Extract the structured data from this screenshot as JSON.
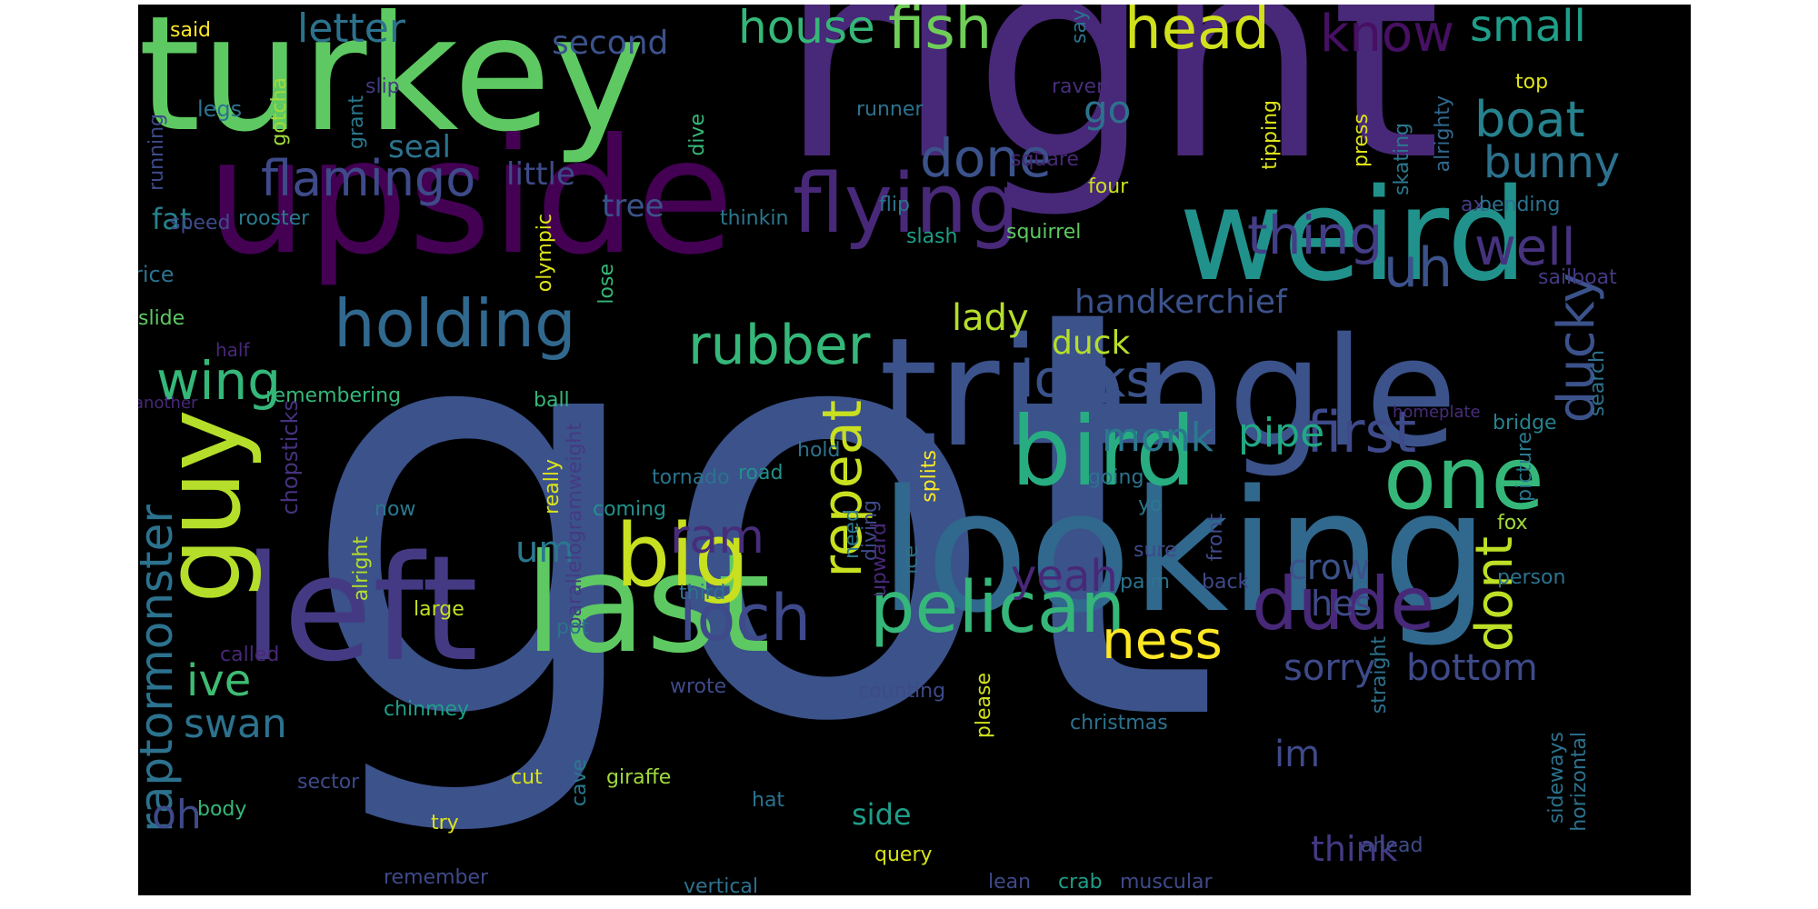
{
  "colors": {
    "canvas_bg": "#000000",
    "page_bg": "#ffffff"
  },
  "words": [
    {
      "text": "got",
      "color": "#3b528b"
    },
    {
      "text": "right",
      "color": "#482878"
    },
    {
      "text": "turkey",
      "color": "#5ec962"
    },
    {
      "text": "upside",
      "color": "#440154"
    },
    {
      "text": "looking",
      "color": "#31688e"
    },
    {
      "text": "triangle",
      "color": "#3b528b"
    },
    {
      "text": "weird",
      "color": "#21918c"
    },
    {
      "text": "last",
      "color": "#5ec962"
    },
    {
      "text": "left",
      "color": "#443a83"
    },
    {
      "text": "flying",
      "color": "#482878"
    },
    {
      "text": "guy",
      "color": "#b5de2b"
    },
    {
      "text": "bird",
      "color": "#27ad81"
    },
    {
      "text": "one",
      "color": "#35b779"
    },
    {
      "text": "big",
      "color": "#c8e020"
    },
    {
      "text": "pelican",
      "color": "#35b779"
    },
    {
      "text": "dude",
      "color": "#482878"
    },
    {
      "text": "holding",
      "color": "#31688e"
    },
    {
      "text": "flamingo",
      "color": "#3e4a89"
    },
    {
      "text": "rubber",
      "color": "#35b779"
    },
    {
      "text": "loch",
      "color": "#3e4a89"
    },
    {
      "text": "head",
      "color": "#d0e11c"
    },
    {
      "text": "fish",
      "color": "#6ece58"
    },
    {
      "text": "house",
      "color": "#35b779"
    },
    {
      "text": "know",
      "color": "#471063"
    },
    {
      "text": "small",
      "color": "#1f9e89"
    },
    {
      "text": "boat",
      "color": "#26828e"
    },
    {
      "text": "bunny",
      "color": "#2c728e"
    },
    {
      "text": "done",
      "color": "#3b528b"
    },
    {
      "text": "thing",
      "color": "#433e85"
    },
    {
      "text": "uh",
      "color": "#3b528b"
    },
    {
      "text": "well",
      "color": "#46327e"
    },
    {
      "text": "first",
      "color": "#3e4a89"
    },
    {
      "text": "ducky",
      "color": "#3b528b"
    },
    {
      "text": "repeat",
      "color": "#c8e020"
    },
    {
      "text": "ram",
      "color": "#472d7b"
    },
    {
      "text": "ness",
      "color": "#fde725"
    },
    {
      "text": "dont",
      "color": "#bddf26"
    },
    {
      "text": "looks",
      "color": "#3b528b"
    },
    {
      "text": "monk",
      "color": "#2a788e"
    },
    {
      "text": "pipe",
      "color": "#22a884"
    },
    {
      "text": "wing",
      "color": "#35b779"
    },
    {
      "text": "raptormonster",
      "color": "#2c728e"
    },
    {
      "text": "ive",
      "color": "#3fbc73"
    },
    {
      "text": "swan",
      "color": "#2c728e"
    },
    {
      "text": "oh",
      "color": "#3e4a89"
    },
    {
      "text": "um",
      "color": "#2a788e"
    },
    {
      "text": "letter",
      "color": "#2c728e"
    },
    {
      "text": "second",
      "color": "#3b528b"
    },
    {
      "text": "seal",
      "color": "#2c728e"
    },
    {
      "text": "go",
      "color": "#2c728e"
    },
    {
      "text": "little",
      "color": "#3e4a89"
    },
    {
      "text": "tree",
      "color": "#3b528b"
    },
    {
      "text": "fat",
      "color": "#26828e"
    },
    {
      "text": "lady",
      "color": "#b5de2b"
    },
    {
      "text": "duck",
      "color": "#b5de2b"
    },
    {
      "text": "handkerchief",
      "color": "#3b528b"
    },
    {
      "text": "yeah",
      "color": "#482878"
    },
    {
      "text": "crow",
      "color": "#3b528b"
    },
    {
      "text": "hes",
      "color": "#3e4a89"
    },
    {
      "text": "sorry",
      "color": "#3e4a89"
    },
    {
      "text": "bottom",
      "color": "#3e4a89"
    },
    {
      "text": "im",
      "color": "#3e4a89"
    },
    {
      "text": "side",
      "color": "#1f9e89"
    },
    {
      "text": "think",
      "color": "#443a83"
    },
    {
      "text": "said",
      "color": "#fde725"
    },
    {
      "text": "gotcha",
      "color": "#a0da39"
    },
    {
      "text": "slip",
      "color": "#443a83"
    },
    {
      "text": "legs",
      "color": "#2c728e"
    },
    {
      "text": "grant",
      "color": "#2a788e"
    },
    {
      "text": "running",
      "color": "#3e4a89"
    },
    {
      "text": "speed",
      "color": "#3e4a89"
    },
    {
      "text": "rooster",
      "color": "#287c8e"
    },
    {
      "text": "rice",
      "color": "#2c728e"
    },
    {
      "text": "slide",
      "color": "#5ec962"
    },
    {
      "text": "half",
      "color": "#482878"
    },
    {
      "text": "another",
      "color": "#482878"
    },
    {
      "text": "remembering",
      "color": "#35b779"
    },
    {
      "text": "chopsticks",
      "color": "#46327e"
    },
    {
      "text": "tornado",
      "color": "#2c728e"
    },
    {
      "text": "ball",
      "color": "#35b779"
    },
    {
      "text": "olympic",
      "color": "#dde318"
    },
    {
      "text": "dive",
      "color": "#35b779"
    },
    {
      "text": "lose",
      "color": "#35b779"
    },
    {
      "text": "thinkin",
      "color": "#2a788e"
    },
    {
      "text": "flip",
      "color": "#2c728e"
    },
    {
      "text": "slash",
      "color": "#1f9e89"
    },
    {
      "text": "squirrel",
      "color": "#5ec962"
    },
    {
      "text": "runner",
      "color": "#2c728e"
    },
    {
      "text": "square",
      "color": "#482878"
    },
    {
      "text": "raven",
      "color": "#472d7b"
    },
    {
      "text": "four",
      "color": "#c8e020"
    },
    {
      "text": "say",
      "color": "#2c728e"
    },
    {
      "text": "top",
      "color": "#dde318"
    },
    {
      "text": "tipping",
      "color": "#dde318"
    },
    {
      "text": "press",
      "color": "#dde318"
    },
    {
      "text": "skating",
      "color": "#2a788e"
    },
    {
      "text": "alrighty",
      "color": "#31688e"
    },
    {
      "text": "ax",
      "color": "#433e85"
    },
    {
      "text": "bending",
      "color": "#2c728e"
    },
    {
      "text": "sailboat",
      "color": "#443a83"
    },
    {
      "text": "search",
      "color": "#2c728e"
    },
    {
      "text": "bridge",
      "color": "#26828e"
    },
    {
      "text": "homeplate",
      "color": "#472d7b"
    },
    {
      "text": "picture",
      "color": "#2a788e"
    },
    {
      "text": "fox",
      "color": "#a0da39"
    },
    {
      "text": "person",
      "color": "#2c728e"
    },
    {
      "text": "now",
      "color": "#2a788e"
    },
    {
      "text": "really",
      "color": "#dde318"
    },
    {
      "text": "parallelogramweight",
      "color": "#443a83"
    },
    {
      "text": "coming",
      "color": "#21918c"
    },
    {
      "text": "third",
      "color": "#2c728e"
    },
    {
      "text": "road",
      "color": "#21918c"
    },
    {
      "text": "hold",
      "color": "#2c728e"
    },
    {
      "text": "splits",
      "color": "#fde725"
    },
    {
      "text": "going",
      "color": "#2c728e"
    },
    {
      "text": "front",
      "color": "#3e4a89"
    },
    {
      "text": "yo",
      "color": "#2a788e"
    },
    {
      "text": "sure",
      "color": "#3e4a89"
    },
    {
      "text": "palm",
      "color": "#2c728e"
    },
    {
      "text": "back",
      "color": "#3e4a89"
    },
    {
      "text": "diving",
      "color": "#3e4a89"
    },
    {
      "text": "ice",
      "color": "#2c728e"
    },
    {
      "text": "upward",
      "color": "#482878"
    },
    {
      "text": "alright",
      "color": "#b5de2b"
    },
    {
      "text": "large",
      "color": "#c2df23"
    },
    {
      "text": "called",
      "color": "#482878"
    },
    {
      "text": "pot",
      "color": "#2c728e"
    },
    {
      "text": "need",
      "color": "#2a788e"
    },
    {
      "text": "chinmey",
      "color": "#1f9e89"
    },
    {
      "text": "counting",
      "color": "#3e4a89"
    },
    {
      "text": "christmas",
      "color": "#2c728e"
    },
    {
      "text": "wrote",
      "color": "#3e4a89"
    },
    {
      "text": "please",
      "color": "#d0e11c"
    },
    {
      "text": "sector",
      "color": "#3e4a89"
    },
    {
      "text": "cut",
      "color": "#d8e219"
    },
    {
      "text": "giraffe",
      "color": "#a0da39"
    },
    {
      "text": "hat",
      "color": "#2c728e"
    },
    {
      "text": "body",
      "color": "#35b779"
    },
    {
      "text": "try",
      "color": "#dde318"
    },
    {
      "text": "cave",
      "color": "#2a788e"
    },
    {
      "text": "query",
      "color": "#d8e219"
    },
    {
      "text": "remember",
      "color": "#3e4a89"
    },
    {
      "text": "vertical",
      "color": "#2c728e"
    },
    {
      "text": "lean",
      "color": "#3e4a89"
    },
    {
      "text": "crab",
      "color": "#1f9e89"
    },
    {
      "text": "muscular",
      "color": "#3e4a89"
    },
    {
      "text": "ahead",
      "color": "#3e4a89"
    },
    {
      "text": "straight",
      "color": "#2c728e"
    },
    {
      "text": "sideways",
      "color": "#2c728e"
    },
    {
      "text": "horizontal",
      "color": "#2c728e"
    }
  ]
}
